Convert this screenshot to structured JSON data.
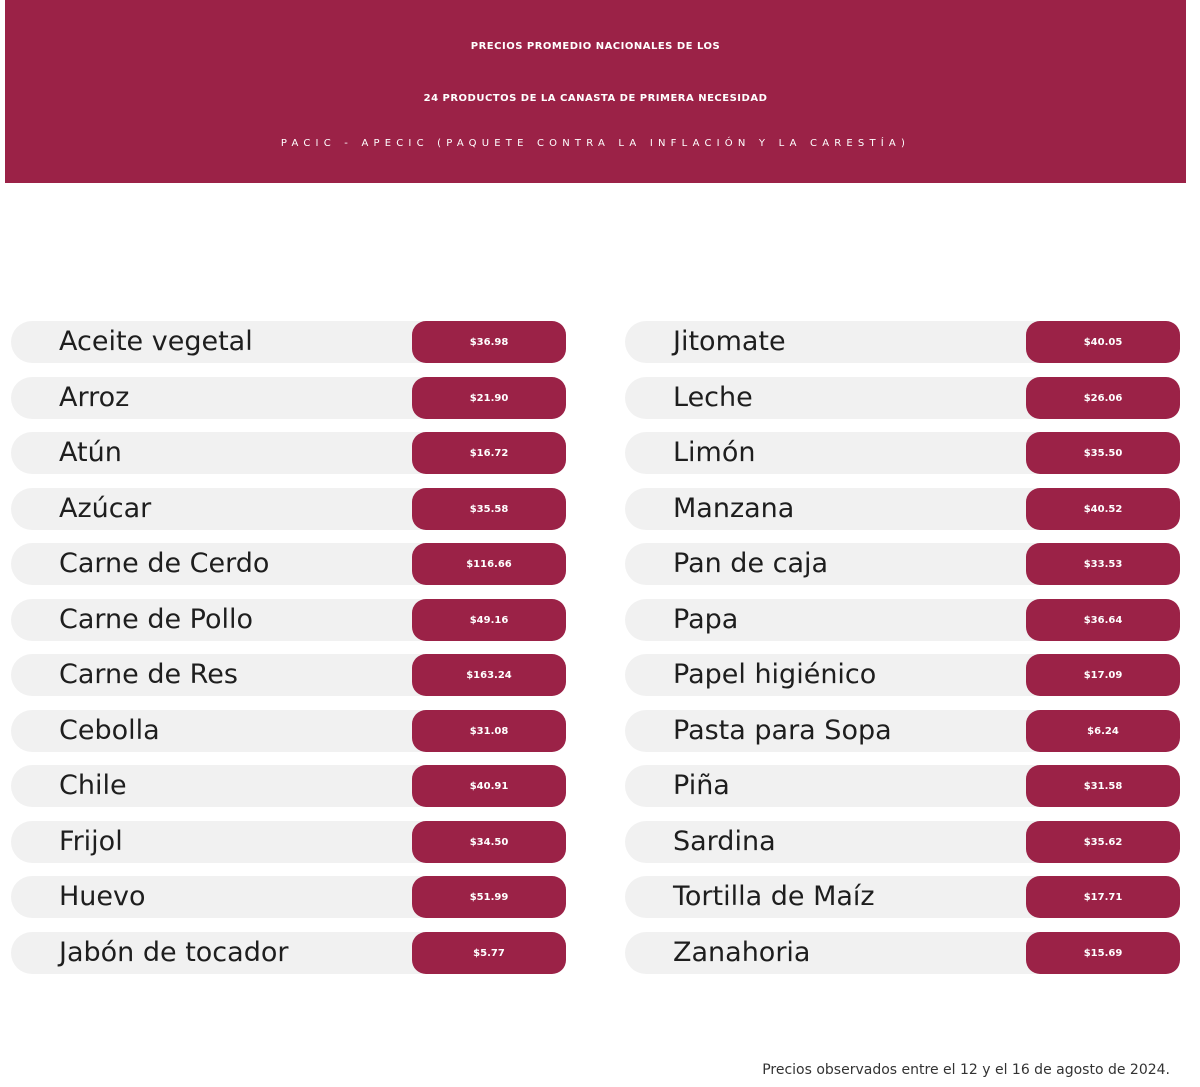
{
  "header": {
    "title_line1": "PRECIOS PROMEDIO NACIONALES DE LOS",
    "title_line2": "24 PRODUCTOS DE LA CANASTA DE PRIMERA NECESIDAD",
    "subtitle": "PACIC - APECIC (PAQUETE CONTRA LA INFLACIÓN Y LA CARESTÍA)"
  },
  "colors": {
    "accent": "#9b2247",
    "row_background": "#f1f1f1",
    "text": "#1e1e1e"
  },
  "left_column": [
    {
      "name": "Aceite vegetal",
      "price": "$36.98"
    },
    {
      "name": "Arroz",
      "price": "$21.90"
    },
    {
      "name": "Atún",
      "price": "$16.72"
    },
    {
      "name": "Azúcar",
      "price": "$35.58"
    },
    {
      "name": "Carne de Cerdo",
      "price": "$116.66"
    },
    {
      "name": "Carne de Pollo",
      "price": "$49.16"
    },
    {
      "name": "Carne de Res",
      "price": "$163.24"
    },
    {
      "name": "Cebolla",
      "price": "$31.08"
    },
    {
      "name": "Chile",
      "price": "$40.91"
    },
    {
      "name": "Frijol",
      "price": "$34.50"
    },
    {
      "name": "Huevo",
      "price": "$51.99"
    },
    {
      "name": "Jabón de tocador",
      "price": "$5.77"
    }
  ],
  "right_column": [
    {
      "name": "Jitomate",
      "price": "$40.05"
    },
    {
      "name": "Leche",
      "price": "$26.06"
    },
    {
      "name": "Limón",
      "price": "$35.50"
    },
    {
      "name": "Manzana",
      "price": "$40.52"
    },
    {
      "name": "Pan de caja",
      "price": "$33.53"
    },
    {
      "name": "Papa",
      "price": "$36.64"
    },
    {
      "name": "Papel higiénico",
      "price": "$17.09"
    },
    {
      "name": "Pasta para Sopa",
      "price": "$6.24"
    },
    {
      "name": "Piña",
      "price": "$31.58"
    },
    {
      "name": "Sardina",
      "price": "$35.62"
    },
    {
      "name": "Tortilla de Maíz",
      "price": "$17.71"
    },
    {
      "name": "Zanahoria",
      "price": "$15.69"
    }
  ],
  "footnote": "Precios observados entre el 12 y el 16 de agosto de 2024."
}
